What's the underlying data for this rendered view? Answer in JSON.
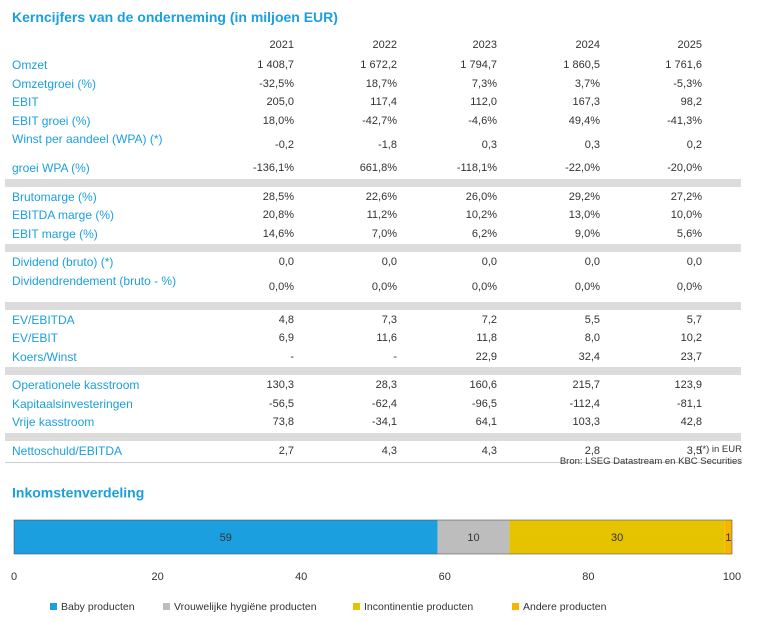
{
  "header": {
    "title": "Kerncijfers van de onderneming (in miljoen EUR)"
  },
  "table": {
    "columns": [
      "2021",
      "2022",
      "2023",
      "2024",
      "2025"
    ],
    "groups": [
      [
        {
          "label": "Omzet",
          "values": [
            "1 408,7",
            "1 672,2",
            "1 794,7",
            "1 860,5",
            "1 761,6"
          ]
        },
        {
          "label": "Omzetgroei (%)",
          "values": [
            "-32,5%",
            "18,7%",
            "7,3%",
            "3,7%",
            "-5,3%"
          ]
        },
        {
          "label": "EBIT",
          "values": [
            "205,0",
            "117,4",
            "112,0",
            "167,3",
            "98,2"
          ]
        },
        {
          "label": "EBIT groei (%)",
          "values": [
            "18,0%",
            "-42,7%",
            "-4,6%",
            "49,4%",
            "-41,3%"
          ]
        },
        {
          "label": "Winst per aandeel (WPA) (*)",
          "values": [
            "-0,2",
            "-1,8",
            "0,3",
            "0,3",
            "0,2"
          ]
        },
        {
          "label": "groei WPA (%)",
          "values": [
            "-136,1%",
            "661,8%",
            "-118,1%",
            "-22,0%",
            "-20,0%"
          ]
        }
      ],
      [
        {
          "label": "Brutomarge (%)",
          "values": [
            "28,5%",
            "22,6%",
            "26,0%",
            "29,2%",
            "27,2%"
          ]
        },
        {
          "label": "EBITDA marge (%)",
          "values": [
            "20,8%",
            "11,2%",
            "10,2%",
            "13,0%",
            "10,0%"
          ]
        },
        {
          "label": "EBIT marge (%)",
          "values": [
            "14,6%",
            "7,0%",
            "6,2%",
            "9,0%",
            "5,6%"
          ]
        }
      ],
      [
        {
          "label": "Dividend (bruto) (*)",
          "values": [
            "0,0",
            "0,0",
            "0,0",
            "0,0",
            "0,0"
          ]
        },
        {
          "label": "Dividendrendement (bruto - %)",
          "values": [
            "0,0%",
            "0,0%",
            "0,0%",
            "0,0%",
            "0,0%"
          ]
        }
      ],
      [
        {
          "label": "EV/EBITDA",
          "values": [
            "4,8",
            "7,3",
            "7,2",
            "5,5",
            "5,7"
          ]
        },
        {
          "label": "EV/EBIT",
          "values": [
            "6,9",
            "11,6",
            "11,8",
            "8,0",
            "10,2"
          ]
        },
        {
          "label": "Koers/Winst",
          "values": [
            "-",
            "-",
            "22,9",
            "32,4",
            "23,7"
          ]
        }
      ],
      [
        {
          "label": "Operationele kasstroom",
          "values": [
            "130,3",
            "28,3",
            "160,6",
            "215,7",
            "123,9"
          ]
        },
        {
          "label": "Kapitaalsinvesteringen",
          "values": [
            "-56,5",
            "-62,4",
            "-96,5",
            "-112,4",
            "-81,1"
          ]
        },
        {
          "label": "Vrije kasstroom",
          "values": [
            "73,8",
            "-34,1",
            "64,1",
            "103,3",
            "42,8"
          ]
        }
      ],
      [
        {
          "label": "Nettoschuld/EBITDA",
          "values": [
            "2,7",
            "4,3",
            "4,3",
            "2,8",
            "3,5"
          ]
        }
      ]
    ]
  },
  "notes": [
    "(*) in EUR",
    "Bron: LSEG Datastream en KBC Securities"
  ],
  "chart_data": {
    "type": "bar",
    "orientation": "horizontal",
    "stacked": true,
    "title": "Inkomstenverdeling",
    "series": [
      {
        "name": "Baby producten",
        "color": "#1b9fdf",
        "values": [
          59
        ]
      },
      {
        "name": "Vrouwelijke hygiëne producten",
        "color": "#bdbdbd",
        "values": [
          10
        ]
      },
      {
        "name": "Incontinentie producten",
        "color": "#e6c300",
        "values": [
          30
        ]
      },
      {
        "name": "Andere producten",
        "color": "#f7b500",
        "values": [
          1
        ]
      }
    ],
    "xlim": [
      0,
      100
    ],
    "xticks": [
      0,
      20,
      40,
      60,
      80,
      100
    ]
  }
}
